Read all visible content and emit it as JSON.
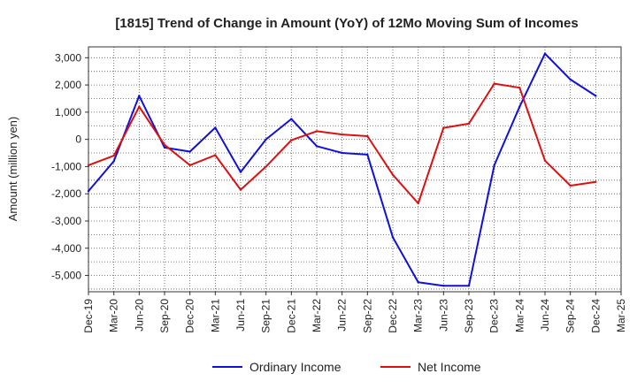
{
  "chart_data": {
    "type": "line",
    "title": "[1815]  Trend of Change in Amount (YoY) of 12Mo Moving Sum of Incomes",
    "xlabel": "",
    "ylabel": "Amount (million yen)",
    "ylim": [
      -5600,
      3400
    ],
    "yticks": [
      3000,
      2000,
      1000,
      0,
      -1000,
      -2000,
      -3000,
      -4000,
      -5000
    ],
    "ytick_labels": [
      "3,000",
      "2,000",
      "1,000",
      "0",
      "-1,000",
      "-2,000",
      "-3,000",
      "-4,000",
      "-5,000"
    ],
    "categories": [
      "Dec-19",
      "Mar-20",
      "Jun-20",
      "Sep-20",
      "Dec-20",
      "Mar-21",
      "Jun-21",
      "Sep-21",
      "Dec-21",
      "Mar-22",
      "Jun-22",
      "Sep-22",
      "Dec-22",
      "Mar-23",
      "Jun-23",
      "Sep-23",
      "Dec-23",
      "Mar-24",
      "Jun-24",
      "Sep-24",
      "Dec-24",
      "Mar-25"
    ],
    "grid": true,
    "legend_position": "bottom",
    "series": [
      {
        "name": "Ordinary Income",
        "color": "#1010dd",
        "values": [
          -1900,
          -800,
          1600,
          -300,
          -450,
          430,
          -1200,
          0,
          750,
          -250,
          -500,
          -560,
          -3600,
          -5250,
          -5380,
          -5380,
          -950,
          1200,
          3150,
          2200,
          1600,
          null
        ]
      },
      {
        "name": "Net Income",
        "color": "#dd1010",
        "values": [
          -950,
          -600,
          1200,
          -200,
          -950,
          -580,
          -1850,
          -1000,
          -30,
          300,
          180,
          120,
          -1300,
          -2350,
          420,
          580,
          2050,
          1900,
          -780,
          -1700,
          -1560,
          null
        ]
      }
    ]
  }
}
